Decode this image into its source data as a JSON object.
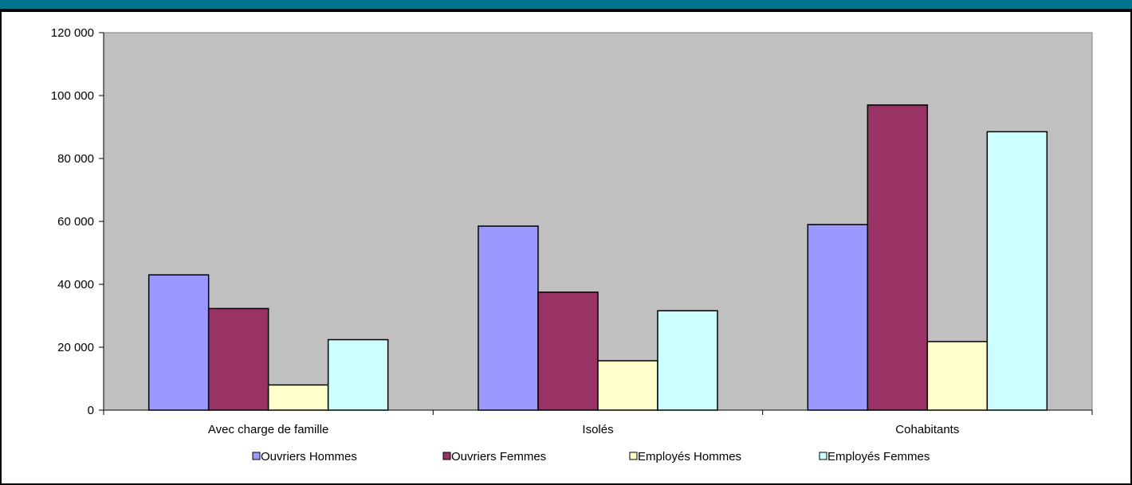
{
  "theme": {
    "header_color": "#00768E",
    "plot_background": "#C0C0C0"
  },
  "chart_data": {
    "type": "bar",
    "title": "",
    "xlabel": "",
    "ylabel": "",
    "categories": [
      "Avec charge de famille",
      "Isolés",
      "Cohabitants"
    ],
    "ylim": [
      0,
      120000
    ],
    "yticks": [
      0,
      20000,
      40000,
      60000,
      80000,
      100000,
      120000
    ],
    "ytick_labels": [
      "0",
      "20 000",
      "40 000",
      "60 000",
      "80 000",
      "100 000",
      "120 000"
    ],
    "grid": false,
    "legend_position": "bottom",
    "series": [
      {
        "name": "Ouvriers Hommes",
        "color": "#9999FF",
        "values": [
          43000,
          58500,
          59000
        ]
      },
      {
        "name": "Ouvriers Femmes",
        "color": "#993366",
        "values": [
          32300,
          37500,
          97000
        ]
      },
      {
        "name": "Employés Hommes",
        "color": "#FFFFCC",
        "values": [
          8000,
          15700,
          21800
        ]
      },
      {
        "name": "Employés Femmes",
        "color": "#CCFFFF",
        "values": [
          22400,
          31600,
          88500
        ]
      }
    ]
  }
}
